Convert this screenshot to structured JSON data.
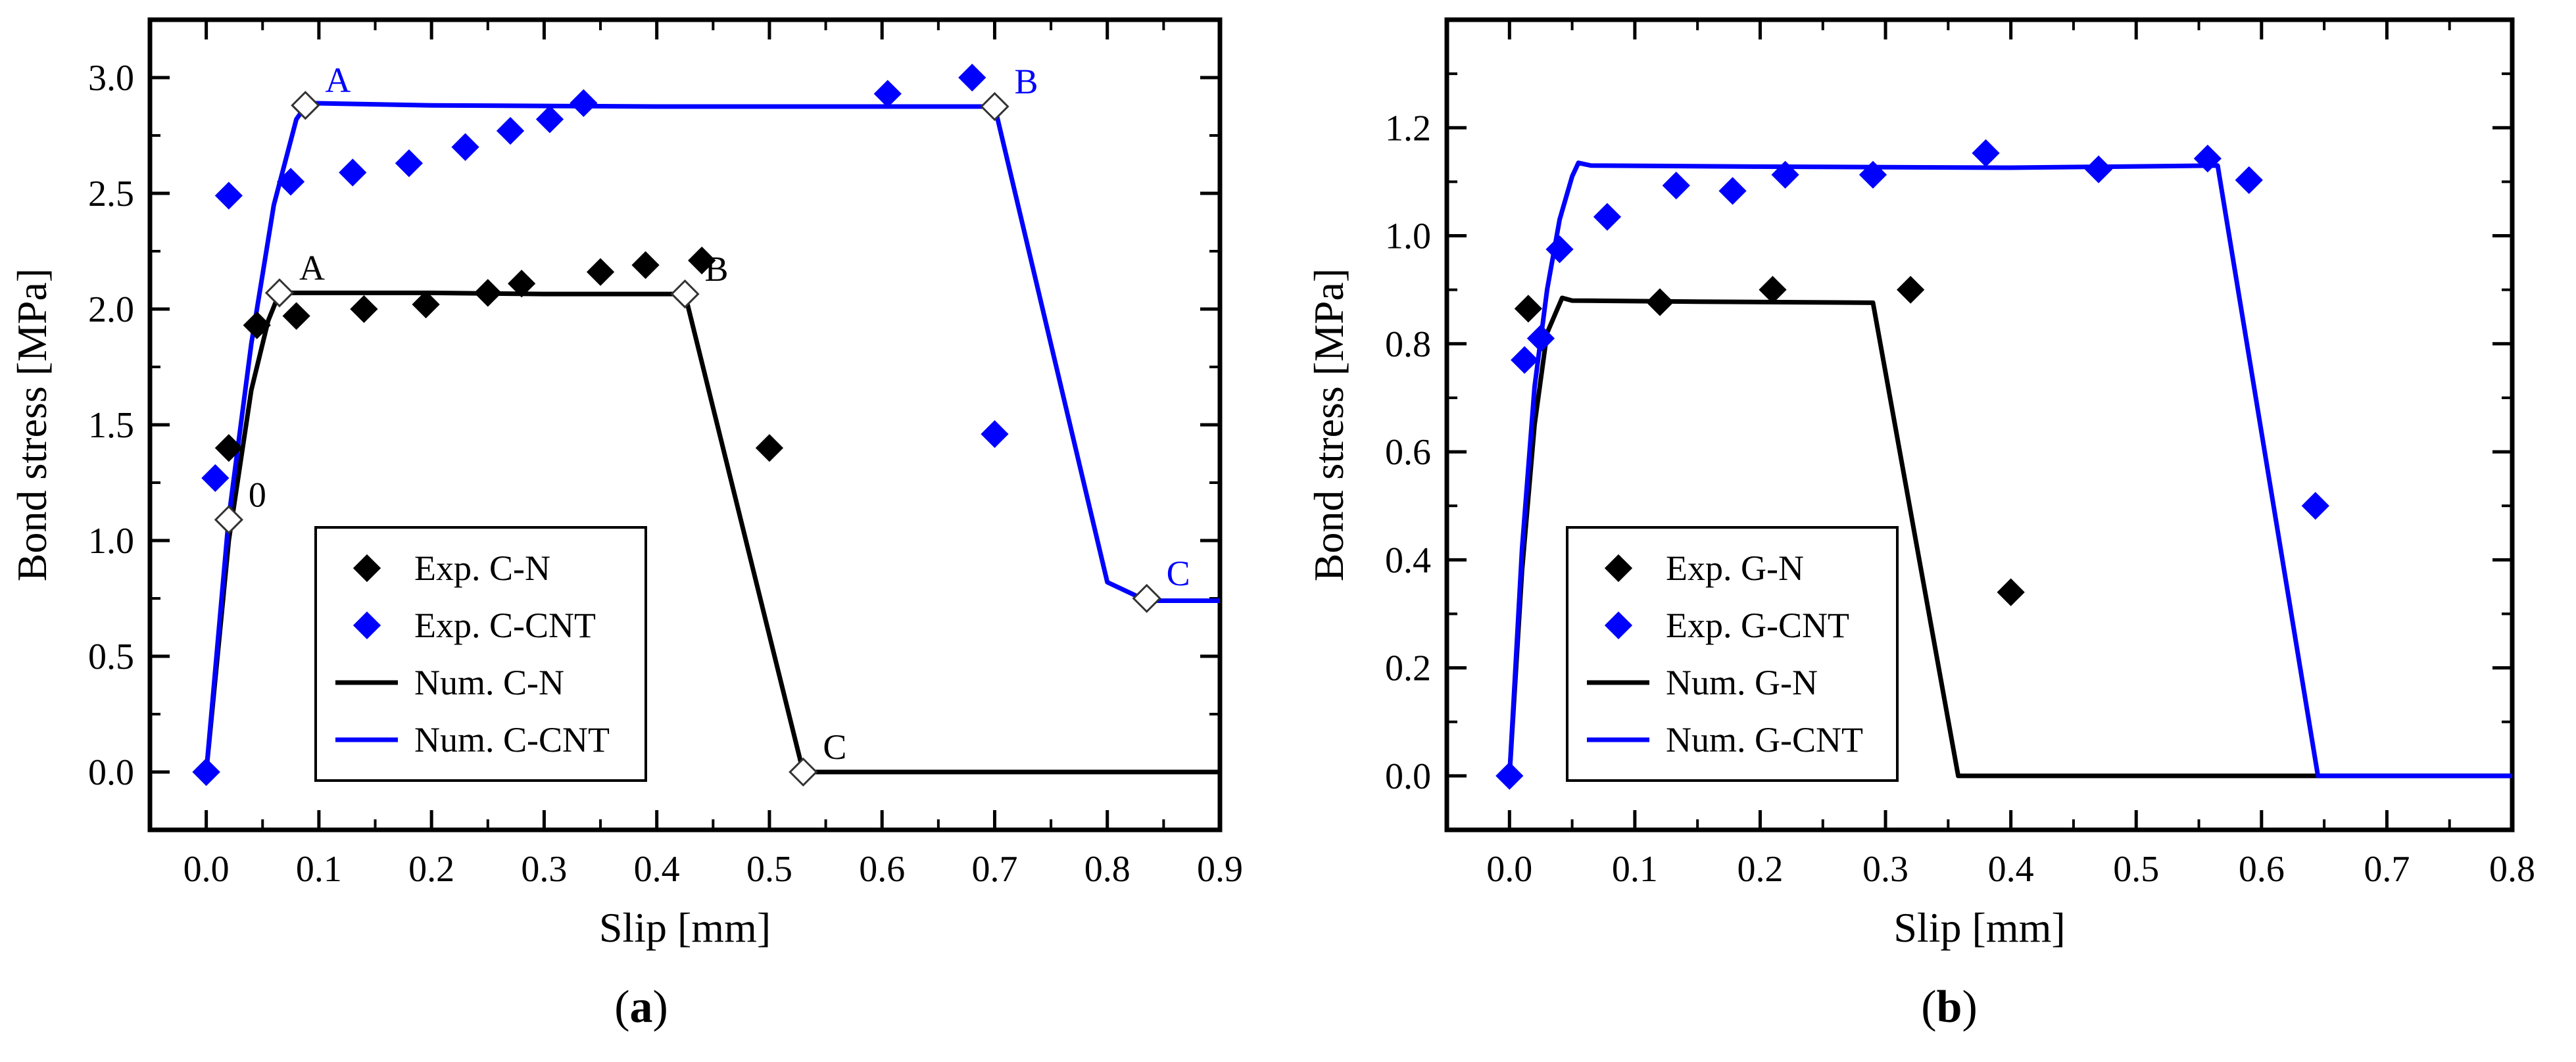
{
  "colors": {
    "black": "#000000",
    "blue": "#0000ff",
    "marker_open": "#ffffff"
  },
  "chart_data": [
    {
      "type": "scatter+line",
      "panel": "a",
      "caption_open": "(",
      "caption_letter": "a",
      "caption_close": ")",
      "xlabel": "Slip [mm]",
      "ylabel": "Bond stress [MPa]",
      "xlim": [
        -0.05,
        0.9
      ],
      "ylim": [
        -0.25,
        3.25
      ],
      "xticks": [
        0.0,
        0.1,
        0.2,
        0.3,
        0.4,
        0.5,
        0.6,
        0.7,
        0.8,
        0.9
      ],
      "xtick_labels": [
        "0.0",
        "0.1",
        "0.2",
        "0.3",
        "0.4",
        "0.5",
        "0.6",
        "0.7",
        "0.8",
        "0.9"
      ],
      "yticks": [
        0.0,
        0.5,
        1.0,
        1.5,
        2.0,
        2.5,
        3.0
      ],
      "ytick_labels": [
        "0.0",
        "0.5",
        "1.0",
        "1.5",
        "2.0",
        "2.5",
        "3.0"
      ],
      "legend_position": "bottom-center",
      "series": [
        {
          "name": "Exp. C-N",
          "kind": "scatter",
          "color": "#000000",
          "x": [
            0.0,
            0.02,
            0.045,
            0.08,
            0.14,
            0.195,
            0.25,
            0.28,
            0.35,
            0.39,
            0.44,
            0.5
          ],
          "y": [
            0.0,
            1.4,
            1.93,
            1.97,
            2.0,
            2.02,
            2.07,
            2.11,
            2.16,
            2.19,
            2.21,
            1.4
          ]
        },
        {
          "name": "Exp. C-CNT",
          "kind": "scatter",
          "color": "#0000ff",
          "x": [
            0.0,
            0.008,
            0.02,
            0.075,
            0.13,
            0.18,
            0.23,
            0.27,
            0.305,
            0.335,
            0.605,
            0.68,
            0.7
          ],
          "y": [
            0.0,
            1.27,
            2.49,
            2.55,
            2.59,
            2.63,
            2.7,
            2.77,
            2.82,
            2.89,
            2.93,
            3.0,
            1.46
          ]
        },
        {
          "name": "Num. C-N",
          "kind": "line",
          "color": "#000000",
          "x": [
            0.0,
            0.02,
            0.04,
            0.055,
            0.065,
            0.08,
            0.2,
            0.3,
            0.425,
            0.53,
            0.9
          ],
          "y": [
            0.0,
            1.0,
            1.65,
            1.95,
            2.07,
            2.07,
            2.07,
            2.065,
            2.065,
            0.0,
            0.0
          ]
        },
        {
          "name": "Num. C-CNT",
          "kind": "line",
          "color": "#0000ff",
          "x": [
            0.0,
            0.02,
            0.04,
            0.06,
            0.08,
            0.09,
            0.2,
            0.4,
            0.7,
            0.8,
            0.835,
            0.9
          ],
          "y": [
            0.0,
            1.1,
            1.85,
            2.45,
            2.82,
            2.89,
            2.88,
            2.875,
            2.875,
            0.82,
            0.74,
            0.74
          ]
        }
      ],
      "annotations": [
        {
          "text": "0",
          "x": 0.02,
          "y": 1.09,
          "color": "#000000"
        },
        {
          "text": "A",
          "x": 0.065,
          "y": 2.07,
          "color": "#000000"
        },
        {
          "text": "B",
          "x": 0.425,
          "y": 2.065,
          "color": "#000000"
        },
        {
          "text": "C",
          "x": 0.53,
          "y": 0.0,
          "color": "#000000"
        },
        {
          "text": "A",
          "x": 0.088,
          "y": 2.88,
          "color": "#0000ff"
        },
        {
          "text": "B",
          "x": 0.7,
          "y": 2.875,
          "color": "#0000ff"
        },
        {
          "text": "C",
          "x": 0.835,
          "y": 0.75,
          "color": "#0000ff"
        }
      ]
    },
    {
      "type": "scatter+line",
      "panel": "b",
      "caption_open": "(",
      "caption_letter": "b",
      "caption_close": ")",
      "xlabel": "Slip [mm]",
      "ylabel": "Bond stress [MPa]",
      "xlim": [
        -0.05,
        0.8
      ],
      "ylim": [
        -0.1,
        1.4
      ],
      "xticks": [
        0.0,
        0.1,
        0.2,
        0.3,
        0.4,
        0.5,
        0.6,
        0.7,
        0.8
      ],
      "xtick_labels": [
        "0.0",
        "0.1",
        "0.2",
        "0.3",
        "0.4",
        "0.5",
        "0.6",
        "0.7",
        "0.8"
      ],
      "yticks": [
        0.0,
        0.2,
        0.4,
        0.6,
        0.8,
        1.0,
        1.2
      ],
      "ytick_labels": [
        "0.0",
        "0.2",
        "0.4",
        "0.6",
        "0.8",
        "1.0",
        "1.2"
      ],
      "legend_position": "bottom-left",
      "series": [
        {
          "name": "Exp. G-N",
          "kind": "scatter",
          "color": "#000000",
          "x": [
            0.015,
            0.12,
            0.21,
            0.32,
            0.4
          ],
          "y": [
            0.865,
            0.877,
            0.9,
            0.9,
            0.34
          ]
        },
        {
          "name": "Exp. G-CNT",
          "kind": "scatter",
          "color": "#0000ff",
          "x": [
            0.0,
            0.012,
            0.025,
            0.04,
            0.078,
            0.133,
            0.178,
            0.22,
            0.29,
            0.38,
            0.47,
            0.557,
            0.59,
            0.643
          ],
          "y": [
            0.0,
            0.77,
            0.81,
            0.975,
            1.035,
            1.093,
            1.083,
            1.113,
            1.113,
            1.153,
            1.123,
            1.143,
            1.103,
            0.5
          ]
        },
        {
          "name": "Num. G-N",
          "kind": "line",
          "color": "#000000",
          "x": [
            0.0,
            0.01,
            0.02,
            0.03,
            0.042,
            0.05,
            0.15,
            0.29,
            0.358,
            0.8
          ],
          "y": [
            0.0,
            0.38,
            0.65,
            0.82,
            0.885,
            0.88,
            0.878,
            0.876,
            0.0,
            0.0
          ]
        },
        {
          "name": "Num. G-CNT",
          "kind": "line",
          "color": "#0000ff",
          "x": [
            0.0,
            0.01,
            0.02,
            0.03,
            0.04,
            0.05,
            0.055,
            0.065,
            0.2,
            0.4,
            0.565,
            0.645,
            0.8
          ],
          "y": [
            0.0,
            0.42,
            0.72,
            0.9,
            1.03,
            1.11,
            1.135,
            1.13,
            1.128,
            1.126,
            1.13,
            0.0,
            0.0
          ]
        }
      ],
      "annotations": []
    }
  ]
}
